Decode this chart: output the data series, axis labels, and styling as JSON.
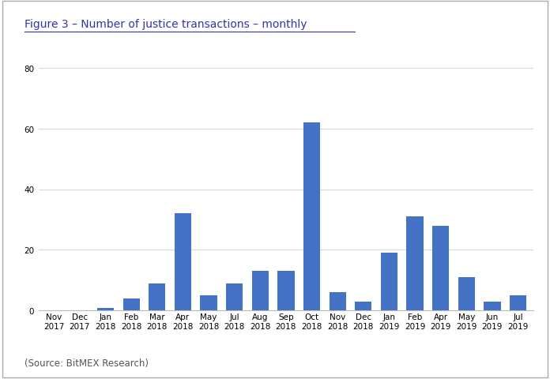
{
  "title": "Figure 3 – Number of justice transactions – monthly",
  "source": "(Source: BitMEX Research)",
  "categories": [
    "Nov\n2017",
    "Dec\n2017",
    "Jan\n2018",
    "Feb\n2018",
    "Mar\n2018",
    "Apr\n2018",
    "May\n2018",
    "Jul\n2018",
    "Aug\n2018",
    "Sep\n2018",
    "Oct\n2018",
    "Nov\n2018",
    "Dec\n2018",
    "Jan\n2019",
    "Feb\n2019",
    "Apr\n2019",
    "May\n2019",
    "Jun\n2019",
    "Jul\n2019"
  ],
  "values": [
    0,
    0,
    1,
    4,
    9,
    32,
    5,
    9,
    13,
    13,
    62,
    6,
    3,
    19,
    31,
    28,
    11,
    3,
    5
  ],
  "bar_color": "#4472C4",
  "ylim": [
    0,
    80
  ],
  "yticks": [
    0,
    20,
    40,
    60,
    80
  ],
  "background_color": "#FFFFFF",
  "grid_color": "#D9D9D9",
  "title_fontsize": 10,
  "tick_fontsize": 7.5,
  "source_fontsize": 8.5,
  "fig_border_color": "#AAAAAA"
}
